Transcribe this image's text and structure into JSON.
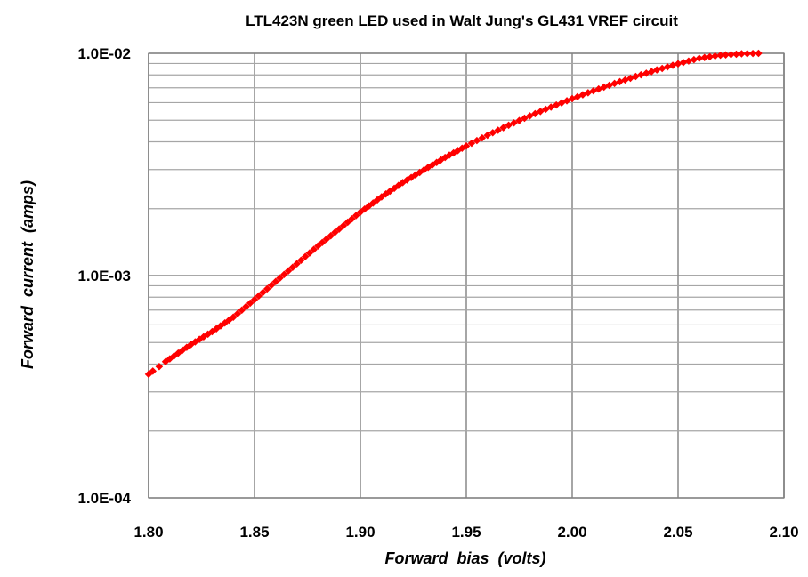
{
  "chart_data": {
    "type": "scatter",
    "title": "LTL423N green LED used in Walt Jung's GL431 VREF circuit",
    "xlabel": "Forward  bias  (volts)",
    "ylabel": "Forward  current  (amps)",
    "xlim": [
      1.8,
      2.1
    ],
    "ylim": [
      0.0001,
      0.01
    ],
    "y_scale": "log",
    "grid": true,
    "x_ticks": [
      "1.80",
      "1.85",
      "1.90",
      "1.95",
      "2.00",
      "2.05",
      "2.10"
    ],
    "x_tick_values": [
      1.8,
      1.85,
      1.9,
      1.95,
      2.0,
      2.05,
      2.1
    ],
    "y_ticks": [
      "1.0E-04",
      "1.0E-03",
      "1.0E-02"
    ],
    "y_tick_values": [
      0.0001,
      0.001,
      0.01
    ],
    "marker_color": "#ff0000",
    "series": [
      {
        "x": [
          1.8,
          1.802,
          1.805,
          1.808,
          1.812,
          1.82,
          1.83,
          1.84,
          1.85,
          1.86,
          1.87,
          1.88,
          1.89,
          1.9,
          1.91,
          1.92,
          1.93,
          1.94,
          1.95,
          1.96,
          1.97,
          1.98,
          1.99,
          2.0,
          2.01,
          2.02,
          2.03,
          2.04,
          2.05,
          2.06,
          2.07,
          2.08,
          2.088
        ],
        "y": [
          0.00036,
          0.000372,
          0.00039,
          0.00041,
          0.000435,
          0.00049,
          0.00056,
          0.00065,
          0.00078,
          0.00094,
          0.00113,
          0.00136,
          0.00162,
          0.00193,
          0.00226,
          0.00262,
          0.00299,
          0.0034,
          0.00383,
          0.00428,
          0.00475,
          0.00523,
          0.00573,
          0.00625,
          0.00678,
          0.00732,
          0.00787,
          0.00842,
          0.00897,
          0.0095,
          0.0098,
          0.00995,
          0.01
        ]
      }
    ]
  }
}
